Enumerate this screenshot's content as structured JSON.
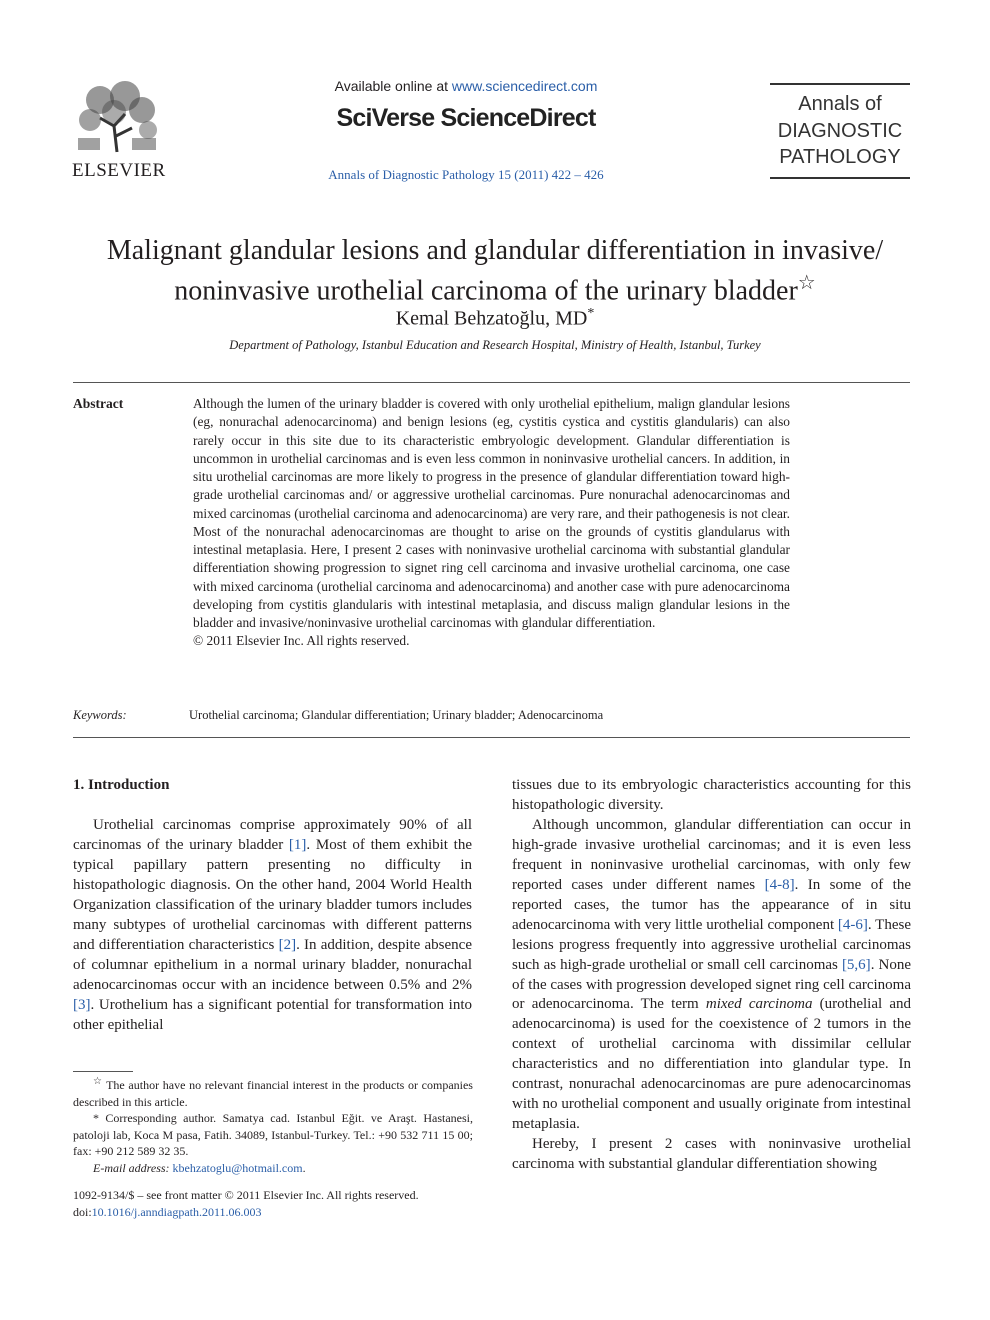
{
  "header": {
    "publisher": "ELSEVIER",
    "available_prefix": "Available online at",
    "available_url": "www.sciencedirect.com",
    "platform": "SciVerse ScienceDirect",
    "citation": "Annals of Diagnostic Pathology 15 (2011) 422 – 426",
    "journal_lines": [
      "Annals of",
      "DIAGNOSTIC",
      "PATHOLOGY"
    ]
  },
  "article": {
    "title": [
      "Malignant glandular lesions and glandular differentiation in invasive/",
      "noninvasive urothelial carcinoma of the urinary bladder"
    ],
    "title_mark": "☆",
    "author": "Kemal Behzatoğlu, MD",
    "author_mark": "*",
    "affiliation": "Department of Pathology, Istanbul Education and Research Hospital, Ministry of Health, Istanbul, Turkey"
  },
  "abstract": {
    "heading": "Abstract",
    "text": "Although the lumen of the urinary bladder is covered with only urothelial epithelium, malign glandular lesions (eg, nonurachal adenocarcinoma) and benign lesions (eg, cystitis cystica and cystitis glandularis) can also rarely occur in this site due to its characteristic embryologic development. Glandular differentiation is uncommon in urothelial carcinomas and is even less common in noninvasive urothelial cancers. In addition, in situ urothelial carcinomas are more likely to progress in the presence of glandular differentiation toward high-grade urothelial carcinomas and/ or aggressive urothelial carcinomas. Pure nonurachal adenocarcinomas and mixed carcinomas (urothelial carcinoma and adenocarcinoma) are very rare, and their pathogenesis is not clear. Most of the nonurachal adenocarcinomas are thought to arise on the grounds of cystitis glandularus with intestinal metaplasia. Here, I present 2 cases with noninvasive urothelial carcinoma with substantial glandular differentiation showing progression to signet ring cell carcinoma and invasive urothelial carcinoma, one case with mixed carcinoma (urothelial carcinoma and adenocarcinoma) and another case with pure adenocarcinoma developing from cystitis glandularis with intestinal metaplasia, and discuss malign glandular lesions in the bladder and invasive/noninvasive urothelial carcinomas with glandular differentiation.",
    "copyright": "© 2011 Elsevier Inc. All rights reserved."
  },
  "keywords": {
    "label": "Keywords:",
    "text": "Urothelial carcinoma; Glandular differentiation; Urinary bladder; Adenocarcinoma"
  },
  "introduction": {
    "heading": "1. Introduction",
    "left_column": [
      [
        "Urothelial carcinomas comprise approximately 90% of all carcinomas of the urinary bladder ",
        "[1]",
        ". Most of them exhibit the typical papillary pattern presenting no difficulty in histopathologic diagnosis. On the other hand, 2004 World Health Organization classification of the urinary bladder tumors includes many subtypes of urothelial carcinomas with different patterns and differentiation characteristics ",
        "[2]",
        ". In addition, despite absence of columnar epithelium in a normal urinary bladder, nonurachal adenocarcinomas occur with an incidence between 0.5% and 2% ",
        "[3]",
        ". Urothelium has a significant potential for transformation into other epithelial"
      ]
    ],
    "right_column": [
      [
        "tissues due to its embryologic characteristics accounting for this histopathologic diversity."
      ],
      [
        "Although uncommon, glandular differentiation can occur in high-grade invasive urothelial carcinomas; and it is even less frequent in noninvasive urothelial carcinomas, with only few reported cases under different names ",
        "[4-8]",
        ". In some of the reported cases, the tumor has the appearance of in situ adenocarcinoma with very little urothelial component ",
        "[4-6]",
        ". These lesions progress frequently into aggressive urothelial carcinomas such as high-grade urothelial or small cell carcinomas ",
        "[5,6]",
        ". None of the cases with progression developed signet ring cell carcinoma or adenocarcinoma. The term ",
        "mixed carcinoma",
        " (urothelial and adenocarcinoma) is used for the coexistence of 2 tumors in the context of urothelial carcinoma with dissimilar cellular characteristics and no differentiation into glandular type. In contrast, nonurachal adenocarcinomas are pure adenocarcinomas with no urothelial component and usually originate from intestinal metaplasia."
      ],
      [
        "Hereby, I present 2 cases with noninvasive urothelial carcinoma with substantial glandular differentiation showing"
      ]
    ]
  },
  "footnotes": {
    "disclosure_mark": "☆",
    "disclosure": "The author have no relevant financial interest in the products or companies described in this article.",
    "corresponding_mark": "*",
    "corresponding": "Corresponding author. Samatya cad. Istanbul Eğit. ve Araşt. Hastanesi, patoloji lab, Koca M pasa, Fatih. 34089, Istanbul-Turkey. Tel.: +90 532 711 15 00; fax: +90 212 589 32 35.",
    "email_label": "E-mail address:",
    "email": "kbehzatoglu@hotmail.com",
    "email_end": "."
  },
  "front_matter": {
    "issn_line": "1092-9134/$ – see front matter © 2011 Elsevier Inc. All rights reserved.",
    "doi_prefix": "doi:",
    "doi": "10.1016/j.anndiagpath.2011.06.003"
  }
}
